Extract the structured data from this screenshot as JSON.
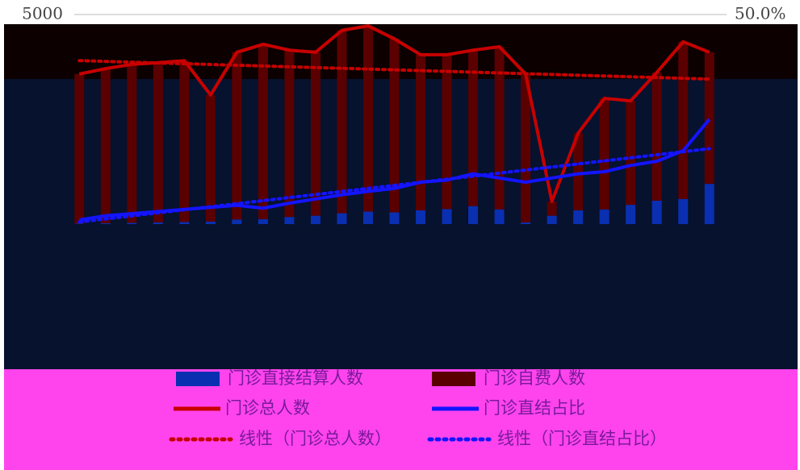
{
  "chart_data": {
    "type": "combo",
    "categories": [
      null,
      null,
      null,
      null,
      null,
      null,
      null,
      null,
      null,
      null,
      null,
      null,
      null,
      null,
      null,
      null,
      null,
      null,
      null,
      null,
      null,
      null,
      null,
      null,
      null
    ],
    "ylim": [
      0,
      5000
    ],
    "yticks": [
      5000
    ],
    "y2lim": [
      0,
      50
    ],
    "y2ticks": [
      {
        "value": 50,
        "label": "50.0%"
      }
    ],
    "grid": true,
    "series": [
      {
        "name": "门诊直接结算人数",
        "color": "#0a2fb0",
        "kind": "bar",
        "values": [
          10,
          20,
          30,
          40,
          50,
          60,
          110,
          120,
          170,
          200,
          260,
          300,
          280,
          330,
          360,
          430,
          350,
          40,
          200,
          330,
          350,
          460,
          560,
          600,
          960
        ]
      },
      {
        "name": "门诊自费人数",
        "color": "#5a0000",
        "kind": "bar",
        "values": [
          3570,
          3690,
          3780,
          3810,
          3850,
          3020,
          3990,
          4170,
          3980,
          3900,
          4360,
          4430,
          4140,
          3710,
          3680,
          3720,
          3880,
          3540,
          340,
          1840,
          2650,
          2480,
          3060,
          3750,
          3140
        ]
      },
      {
        "name": "门诊总人数",
        "color": "#c80000",
        "kind": "line",
        "values": [
          3580,
          3710,
          3810,
          3850,
          3900,
          3080,
          4100,
          4290,
          4150,
          4100,
          4620,
          4730,
          4420,
          4040,
          4040,
          4150,
          4230,
          3580,
          540,
          2170,
          3000,
          2940,
          3620,
          4350,
          4100
        ]
      },
      {
        "name": "门诊直结占比",
        "color": "#1414ff",
        "kind": "line",
        "axis": "y2",
        "values": [
          1,
          2,
          2.5,
          3,
          3.5,
          4,
          4.5,
          3.8,
          5,
          6,
          7,
          7.8,
          8.5,
          10,
          10.5,
          12,
          11,
          10,
          11,
          12,
          12.5,
          14,
          15,
          17.5,
          25
        ]
      }
    ],
    "trendlines": [
      {
        "name": "线性（门诊总人数）",
        "color": "#c80000",
        "values": [
          3900,
          3460
        ]
      },
      {
        "name": "线性（门诊直结占比）",
        "color": "#1414ff",
        "axis": "y2",
        "values": [
          0.5,
          18
        ]
      }
    ]
  }
}
